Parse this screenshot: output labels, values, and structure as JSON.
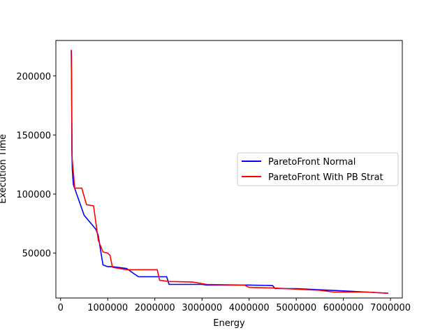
{
  "chart_data": {
    "type": "line",
    "title": "",
    "xlabel": "Energy",
    "ylabel": "Execution Time",
    "ylabel_color": "#0000ff",
    "xlim": [
      -100000,
      7250000
    ],
    "ylim": [
      12000,
      230000
    ],
    "xticks": [
      0,
      1000000,
      2000000,
      3000000,
      4000000,
      5000000,
      6000000,
      7000000
    ],
    "xtick_labels": [
      "0",
      "1000000",
      "2000000",
      "3000000",
      "4000000",
      "5000000",
      "6000000",
      "7000000"
    ],
    "yticks": [
      50000,
      100000,
      150000,
      200000
    ],
    "ytick_labels": [
      "50000",
      "100000",
      "150000",
      "200000"
    ],
    "grid": false,
    "legend_position": "center-right",
    "series": [
      {
        "name": "ParetoFront Normal",
        "color": "#0000ff",
        "x": [
          230000,
          240000,
          250000,
          270000,
          500000,
          750000,
          800000,
          850000,
          900000,
          1000000,
          1100000,
          1400000,
          1650000,
          2250000,
          2300000,
          3000000,
          3100000,
          4000000,
          4500000,
          4550000,
          5000000,
          5500000,
          6000000,
          6500000,
          6950000
        ],
        "y": [
          222000,
          135000,
          120000,
          108000,
          82000,
          70000,
          65000,
          52000,
          40000,
          38500,
          38500,
          37000,
          30000,
          30000,
          23500,
          23500,
          23000,
          23000,
          22500,
          20000,
          20000,
          19000,
          18000,
          17000,
          16000
        ]
      },
      {
        "name": "ParetoFront With PB Strat",
        "color": "#ff0000",
        "x": [
          225000,
          235000,
          245000,
          300000,
          450000,
          550000,
          700000,
          800000,
          900000,
          1000000,
          1050000,
          1100000,
          1400000,
          2050000,
          2100000,
          2300000,
          2800000,
          3100000,
          3900000,
          4000000,
          4500000,
          5000000,
          5500000,
          5800000,
          6500000,
          6950000
        ],
        "y": [
          222000,
          190000,
          130000,
          105000,
          105000,
          91000,
          90000,
          61000,
          51000,
          50000,
          48000,
          38000,
          36000,
          36000,
          27000,
          26000,
          25500,
          23500,
          23000,
          21000,
          20500,
          19500,
          18500,
          17000,
          17000,
          16000
        ]
      }
    ]
  }
}
